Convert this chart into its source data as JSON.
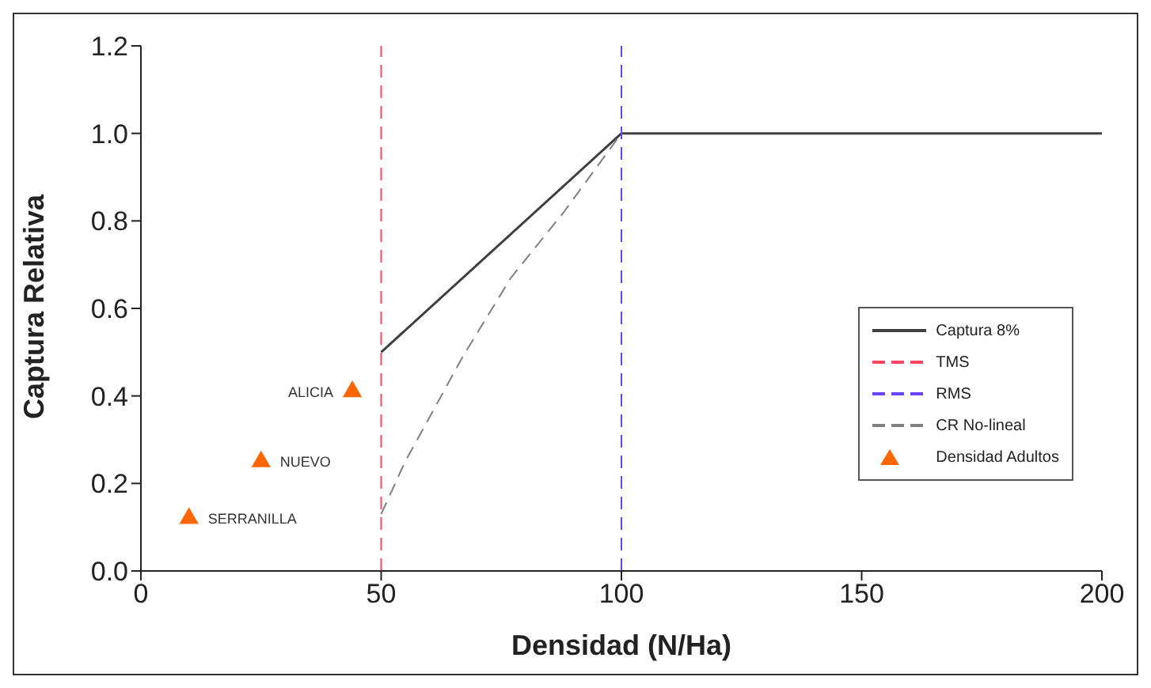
{
  "chart_data": {
    "type": "line",
    "xlabel": "Densidad (N/Ha)",
    "ylabel": "Captura Relativa",
    "xlim": [
      0,
      200
    ],
    "xticks": [
      0,
      50,
      100,
      150,
      200
    ],
    "ylim": [
      0,
      1.2
    ],
    "yticks": [
      {
        "value": 0,
        "label": "0.0"
      },
      {
        "value": 0.2,
        "label": "0.2"
      },
      {
        "value": 0.4,
        "label": "0.4"
      },
      {
        "value": 0.6,
        "label": "0.6"
      },
      {
        "value": 0.8,
        "label": "0.8"
      },
      {
        "value": 1,
        "label": "1.0"
      },
      {
        "value": 1.2,
        "label": "1.2"
      }
    ],
    "grid": false,
    "legend": "right",
    "series": [
      {
        "name": "Captura 8%",
        "color": "#404040",
        "line_style": "solid",
        "marker": "none",
        "x": [
          50,
          100,
          200
        ],
        "values": [
          0.5,
          1.0,
          1.0
        ]
      },
      {
        "name": "TMS",
        "color": "#ff4466",
        "line_style": "dashed",
        "marker": "none",
        "x": [
          50,
          50
        ],
        "values": [
          0,
          1.2
        ]
      },
      {
        "name": "RMS",
        "color": "#6644ff",
        "line_style": "dashed",
        "marker": "none",
        "x": [
          100,
          100
        ],
        "values": [
          0,
          1.2
        ]
      },
      {
        "name": "CR No-lineal",
        "color": "#808080",
        "line_style": "dashed",
        "marker": "none",
        "x": [
          50,
          55,
          67,
          77,
          88,
          100
        ],
        "values": [
          0.13,
          0.25,
          0.49,
          0.67,
          0.82,
          1.0
        ]
      },
      {
        "name": "Densidad Adultos",
        "type": "scatter",
        "color": "#ff6600",
        "marker": "triangle",
        "x": [
          10,
          25,
          44
        ],
        "values": [
          0.12,
          0.25,
          0.41
        ]
      }
    ],
    "annotations": [
      {
        "text": "SERRANILLA",
        "x": 10,
        "y": 0.12
      },
      {
        "text": "NUEVO",
        "x": 25,
        "y": 0.25
      },
      {
        "text": "ALICIA",
        "x": 44,
        "y": 0.41
      }
    ]
  }
}
